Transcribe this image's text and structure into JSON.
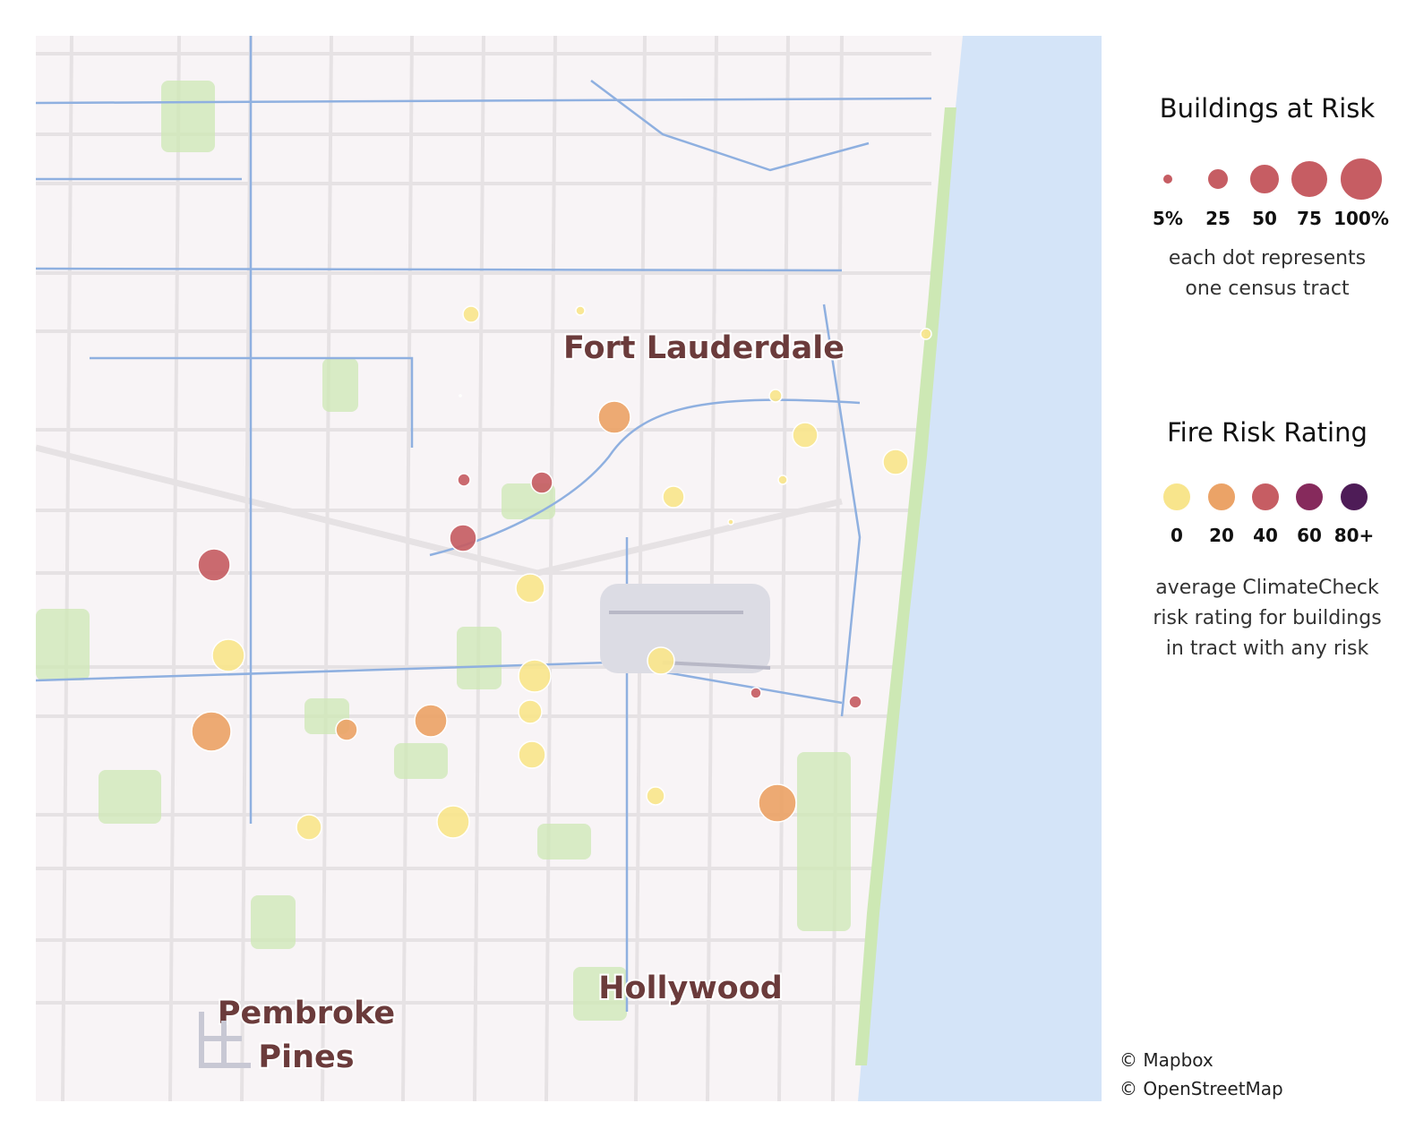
{
  "map": {
    "cities": [
      {
        "name": "Fort Lauderdale",
        "lines": [
          "Fort Lauderdale"
        ]
      },
      {
        "name": "Hollywood",
        "lines": [
          "Hollywood"
        ]
      },
      {
        "name": "Pembroke Pines",
        "lines": [
          "Pembroke",
          "Pines"
        ]
      }
    ],
    "colors": {
      "land": "#f8f4f6",
      "water": "#d4e4f8",
      "waterway": "#8fb0e0",
      "park": "#cde8b4",
      "road": "#e6e2e4",
      "airport": "#dcdce4",
      "label": "#6b3b3b"
    }
  },
  "legend": {
    "size": {
      "title": "Buildings at Risk",
      "labels": [
        "5%",
        "25",
        "50",
        "75",
        "100%"
      ],
      "values": [
        5,
        25,
        50,
        75,
        100
      ],
      "caption_lines": [
        "each dot represents",
        "one census tract"
      ],
      "dot_color": "#c65d63"
    },
    "color": {
      "title": "Fire Risk Rating",
      "labels": [
        "0",
        "20",
        "40",
        "60",
        "80+"
      ],
      "colors": [
        "#f8e58c",
        "#eba367",
        "#c65d63",
        "#862a5c",
        "#4e1c57"
      ],
      "caption_lines": [
        "average ClimateCheck",
        "risk rating for buildings",
        "in tract with any risk"
      ]
    }
  },
  "attribution": [
    "© Mapbox",
    "© OpenStreetMap"
  ]
}
